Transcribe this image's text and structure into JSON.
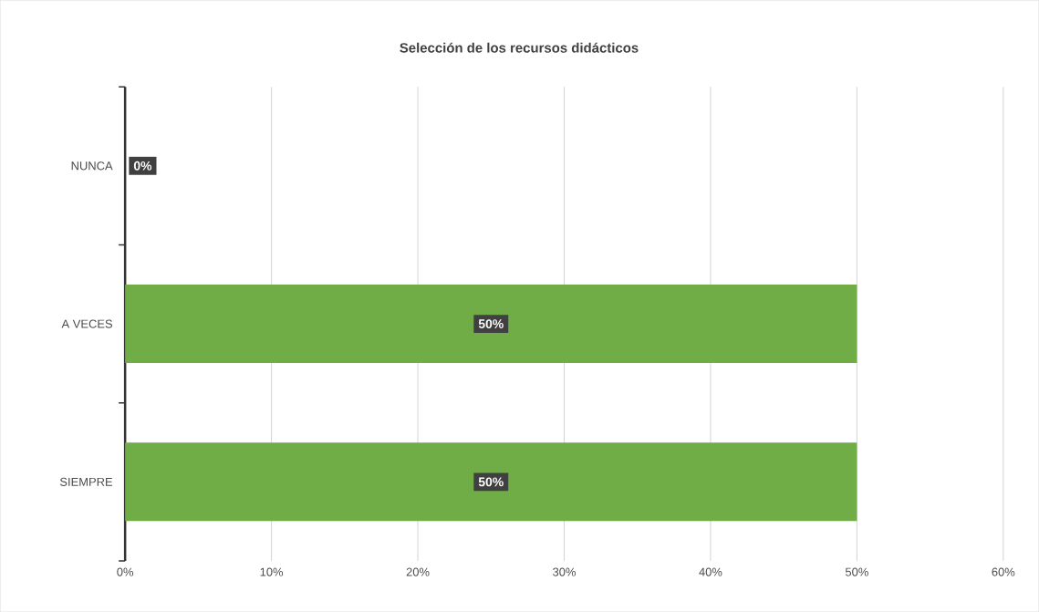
{
  "chart_data": {
    "type": "bar",
    "orientation": "horizontal",
    "title": "Selección de los recursos didácticos",
    "categories": [
      "NUNCA",
      "A VECES",
      "SIEMPRE"
    ],
    "values": [
      0,
      50,
      50
    ],
    "value_labels": [
      "0%",
      "50%",
      "50%"
    ],
    "color": "#70ad47",
    "xlim": [
      0,
      60
    ],
    "xticks": [
      {
        "value": 0,
        "label": "0%"
      },
      {
        "value": 10,
        "label": "10%"
      },
      {
        "value": 20,
        "label": "20%"
      },
      {
        "value": 30,
        "label": "30%"
      },
      {
        "value": 40,
        "label": "40%"
      },
      {
        "value": 50,
        "label": "50%"
      },
      {
        "value": 60,
        "label": "60%"
      }
    ],
    "grid": "x"
  }
}
